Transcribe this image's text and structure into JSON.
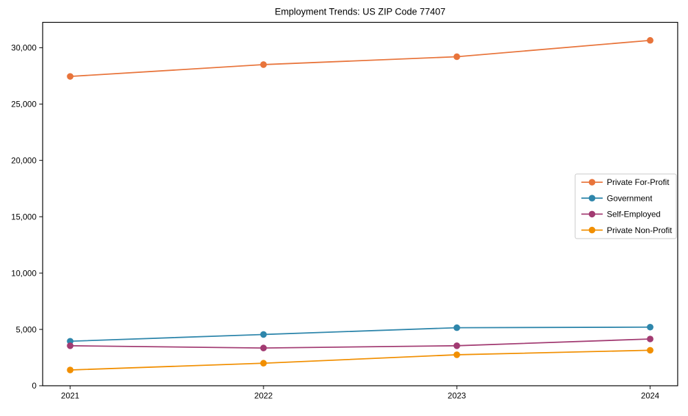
{
  "figure": {
    "background_color": "#ffffff",
    "axis_color": "#000000",
    "legend_border_color": "#c9c9c9"
  },
  "chart_data": {
    "type": "line",
    "title": "Employment Trends: US ZIP Code 77407",
    "xlabel": "",
    "ylabel": "",
    "categories": [
      "2021",
      "2022",
      "2023",
      "2024"
    ],
    "series": [
      {
        "name": "Private For-Profit",
        "color": "#E8743B",
        "values": [
          27450,
          28500,
          29200,
          30650
        ]
      },
      {
        "name": "Government",
        "color": "#2E86AB",
        "values": [
          3950,
          4550,
          5150,
          5200
        ]
      },
      {
        "name": "Self-Employed",
        "color": "#A23B72",
        "values": [
          3550,
          3350,
          3550,
          4150
        ]
      },
      {
        "name": "Private Non-Profit",
        "color": "#F18F01",
        "values": [
          1400,
          2000,
          2750,
          3150
        ]
      }
    ],
    "ylim": [
      0,
      32250
    ],
    "yticks": [
      0,
      5000,
      10000,
      15000,
      20000,
      25000,
      30000
    ],
    "ytick_labels": [
      "0",
      "5,000",
      "10,000",
      "15,000",
      "20,000",
      "25,000",
      "30,000"
    ],
    "grid": false,
    "legend_position": "center right",
    "marker": "circle"
  }
}
